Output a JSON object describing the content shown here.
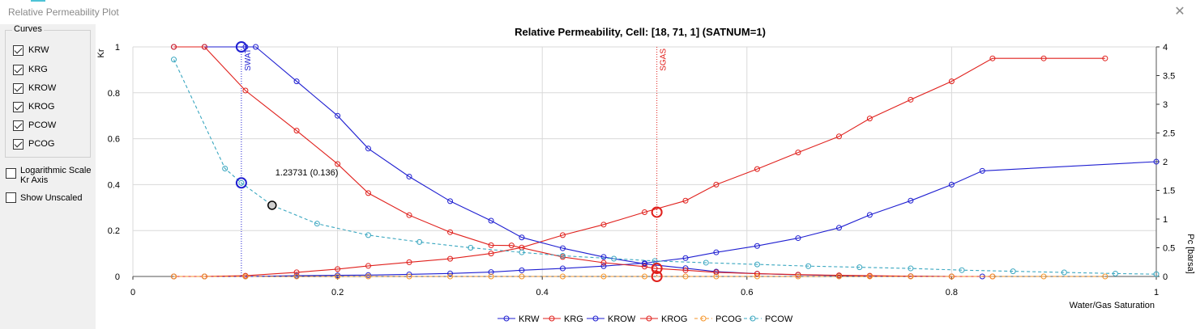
{
  "window": {
    "title": "Relative Permeability Plot",
    "close_glyph": "✕"
  },
  "sidebar": {
    "group_label": "Curves",
    "curves": [
      {
        "label": "KRW",
        "checked": true
      },
      {
        "label": "KRG",
        "checked": true
      },
      {
        "label": "KROW",
        "checked": true
      },
      {
        "label": "KROG",
        "checked": true
      },
      {
        "label": "PCOW",
        "checked": true
      },
      {
        "label": "PCOG",
        "checked": true
      }
    ],
    "log_scale_label": "Logarithmic Scale Kr Axis",
    "log_scale_checked": false,
    "show_unscaled_label": "Show Unscaled",
    "show_unscaled_checked": false
  },
  "chart_data": {
    "type": "line",
    "title": "Relative Permeability, Cell: [18, 71, 1] (SATNUM=1)",
    "xlabel": "Water/Gas Saturation",
    "ylabel": "Kr",
    "y2label": "Pc [barsa]",
    "xlim": [
      0,
      1
    ],
    "ylim": [
      0,
      1
    ],
    "y2lim": [
      0,
      4
    ],
    "xticks": [
      "0",
      "0.2",
      "0.4",
      "0.6",
      "0.8",
      "1"
    ],
    "yticks": [
      "0",
      "0.2",
      "0.4",
      "0.6",
      "0.8",
      "1"
    ],
    "y2ticks": [
      "0",
      "0.5",
      "1",
      "1.5",
      "2",
      "2.5",
      "3",
      "3.5",
      "4"
    ],
    "grid": true,
    "colors": {
      "blue": "#1f1fd1",
      "red": "#e0201c",
      "orange": "#f5962a",
      "teal": "#3aa7c0"
    },
    "series": [
      {
        "name": "KRW",
        "color": "#1f1fd1",
        "dash": false,
        "axis": "left",
        "x": [
          0.04,
          0.07,
          0.11,
          0.16,
          0.2,
          0.23,
          0.27,
          0.31,
          0.35,
          0.38,
          0.42,
          0.46,
          0.5,
          0.54,
          0.57,
          0.61,
          0.65,
          0.69,
          0.72,
          0.76,
          0.8,
          0.83,
          1.0
        ],
        "y": [
          0,
          0,
          0,
          0.003,
          0.005,
          0.006,
          0.009,
          0.013,
          0.019,
          0.027,
          0.035,
          0.045,
          0.058,
          0.08,
          0.105,
          0.133,
          0.167,
          0.212,
          0.268,
          0.33,
          0.4,
          0.46,
          0.5
        ]
      },
      {
        "name": "KRG",
        "color": "#e0201c",
        "dash": false,
        "axis": "left",
        "x": [
          0.04,
          0.07,
          0.11,
          0.16,
          0.2,
          0.23,
          0.27,
          0.31,
          0.35,
          0.38,
          0.42,
          0.46,
          0.5,
          0.54,
          0.57,
          0.61,
          0.65,
          0.69,
          0.72,
          0.76,
          0.8,
          0.84,
          0.89,
          0.95
        ],
        "y": [
          0,
          0,
          0.003,
          0.018,
          0.032,
          0.046,
          0.062,
          0.077,
          0.1,
          0.126,
          0.18,
          0.226,
          0.28,
          0.33,
          0.4,
          0.468,
          0.54,
          0.61,
          0.688,
          0.77,
          0.85,
          0.95,
          0.95,
          0.95
        ]
      },
      {
        "name": "KROW",
        "color": "#1f1fd1",
        "dash": false,
        "axis": "left",
        "x": [
          0.04,
          0.07,
          0.11,
          0.12,
          0.16,
          0.2,
          0.23,
          0.27,
          0.31,
          0.35,
          0.38,
          0.42,
          0.46,
          0.5,
          0.54,
          0.57,
          0.61,
          0.65,
          0.69,
          0.72,
          0.76,
          0.8,
          0.83
        ],
        "y": [
          1,
          1,
          1,
          1,
          0.85,
          0.7,
          0.557,
          0.435,
          0.328,
          0.243,
          0.17,
          0.123,
          0.085,
          0.055,
          0.036,
          0.021,
          0.012,
          0.007,
          0.004,
          0.002,
          0.001,
          0,
          0
        ]
      },
      {
        "name": "KROG",
        "color": "#e0201c",
        "dash": false,
        "axis": "left",
        "x": [
          0.04,
          0.07,
          0.11,
          0.16,
          0.2,
          0.23,
          0.27,
          0.31,
          0.35,
          0.37,
          0.42,
          0.46,
          0.5,
          0.51,
          0.54,
          0.57,
          0.61,
          0.65,
          0.69,
          0.72,
          0.76,
          0.8,
          0.84
        ],
        "y": [
          1,
          1,
          0.81,
          0.635,
          0.49,
          0.363,
          0.267,
          0.193,
          0.136,
          0.135,
          0.085,
          0.06,
          0.043,
          0.035,
          0.027,
          0.018,
          0.012,
          0.008,
          0.005,
          0.003,
          0.001,
          0,
          0
        ]
      },
      {
        "name": "PCOG",
        "color": "#f5962a",
        "dash": true,
        "axis": "right",
        "x": [
          0.04,
          0.07,
          0.11,
          0.16,
          0.2,
          0.23,
          0.27,
          0.31,
          0.35,
          0.38,
          0.42,
          0.46,
          0.5,
          0.54,
          0.57,
          0.61,
          0.65,
          0.69,
          0.72,
          0.76,
          0.8,
          0.84,
          0.89,
          0.95
        ],
        "y": [
          0,
          0,
          0,
          0,
          0,
          0,
          0,
          0,
          0,
          0,
          0,
          0,
          0,
          0,
          0,
          0,
          0,
          0,
          0,
          0,
          0,
          0,
          0,
          0
        ]
      },
      {
        "name": "PCOW",
        "color": "#3aa7c0",
        "dash": true,
        "axis": "right",
        "x": [
          0.04,
          0.09,
          0.106,
          0.136,
          0.18,
          0.23,
          0.28,
          0.33,
          0.38,
          0.42,
          0.47,
          0.51,
          0.56,
          0.61,
          0.66,
          0.71,
          0.76,
          0.81,
          0.86,
          0.91,
          0.96,
          1.0
        ],
        "y": [
          3.78,
          1.88,
          1.63,
          1.24,
          0.92,
          0.72,
          0.6,
          0.5,
          0.42,
          0.36,
          0.31,
          0.27,
          0.24,
          0.21,
          0.18,
          0.16,
          0.14,
          0.11,
          0.09,
          0.07,
          0.05,
          0.04
        ]
      }
    ],
    "vlines": [
      {
        "label": "SWAT",
        "x": 0.106,
        "color": "#1f1fd1"
      },
      {
        "label": "SGAS",
        "x": 0.512,
        "color": "#e0201c"
      }
    ],
    "highlights": [
      {
        "x": 0.106,
        "y": 1.0,
        "axis": "left",
        "color": "#1f1fd1"
      },
      {
        "x": 0.106,
        "y": 1.63,
        "axis": "right",
        "color": "#1f1fd1"
      },
      {
        "x": 0.512,
        "y": 0.28,
        "axis": "left",
        "color": "#e0201c"
      },
      {
        "x": 0.512,
        "y": 0.035,
        "axis": "left",
        "color": "#e0201c"
      },
      {
        "x": 0.512,
        "y": 0.0,
        "axis": "left",
        "color": "#e0201c"
      }
    ],
    "hover": {
      "x": 0.136,
      "y": 1.24,
      "axis": "right",
      "label": "1.23731 (0.136)"
    },
    "legend_position": "bottom"
  }
}
